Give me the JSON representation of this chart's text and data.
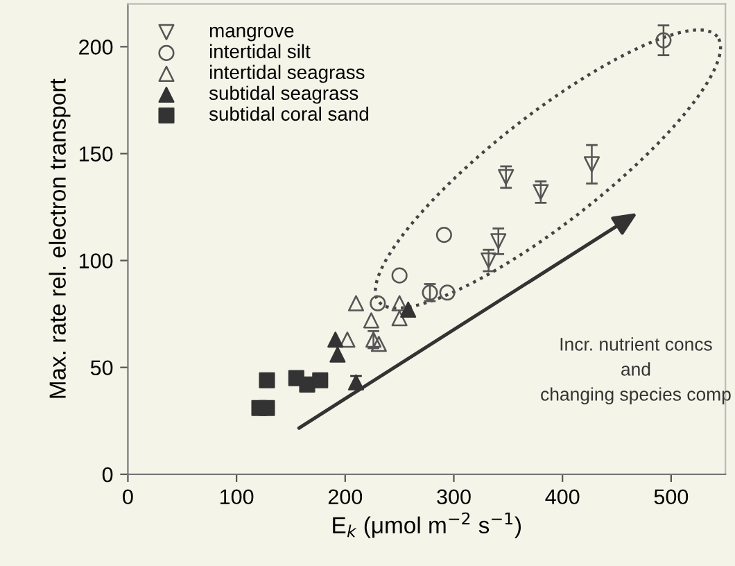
{
  "chart_data": {
    "type": "scatter",
    "xlabel": "E$_{k}$ (μmol m$^{−2}$ s$^{−1}$)",
    "ylabel": "Max. rate rel. electron transport",
    "xlim": [
      0,
      550
    ],
    "ylim": [
      0,
      220
    ],
    "xticks": [
      0,
      100,
      200,
      300,
      400,
      500
    ],
    "yticks": [
      0,
      50,
      100,
      150,
      200
    ],
    "legend": "top left",
    "grid": false,
    "annotations": [
      "Incr. nutrient concs\nand\nchanging species comp"
    ],
    "series": [
      {
        "name": "mangrove",
        "color": "#555555",
        "marker": "triangle-down-open",
        "x": [
          348,
          380,
          427,
          341,
          332
        ],
        "values": [
          139,
          132,
          145,
          109,
          100
        ],
        "errors": [
          5,
          5,
          9,
          6,
          5
        ]
      },
      {
        "name": "intertidal silt",
        "color": "#555555",
        "marker": "circle-open",
        "x": [
          493,
          291,
          250,
          230,
          278,
          294
        ],
        "values": [
          203,
          112,
          93,
          80,
          85,
          85
        ],
        "errors": [
          7,
          null,
          null,
          null,
          4,
          null
        ]
      },
      {
        "name": "intertidal seagrass",
        "color": "#555555",
        "marker": "triangle-open",
        "x": [
          210,
          250,
          224,
          250,
          202,
          226,
          231
        ],
        "values": [
          80,
          80,
          72,
          73,
          63,
          63,
          61
        ],
        "errors": [
          null,
          null,
          null,
          null,
          null,
          4,
          null
        ]
      },
      {
        "name": "subtidal seagrass",
        "color": "#333333",
        "marker": "triangle",
        "x": [
          191,
          193,
          210,
          258
        ],
        "values": [
          63,
          56,
          43,
          77
        ],
        "errors": [
          null,
          null,
          3,
          null
        ]
      },
      {
        "name": "subtidal coral sand",
        "color": "#333333",
        "marker": "square",
        "x": [
          128,
          155,
          165,
          177,
          121,
          128
        ],
        "values": [
          44,
          45,
          42,
          44,
          31,
          31
        ],
        "errors": [
          null,
          null,
          null,
          3,
          2,
          null
        ]
      }
    ]
  }
}
